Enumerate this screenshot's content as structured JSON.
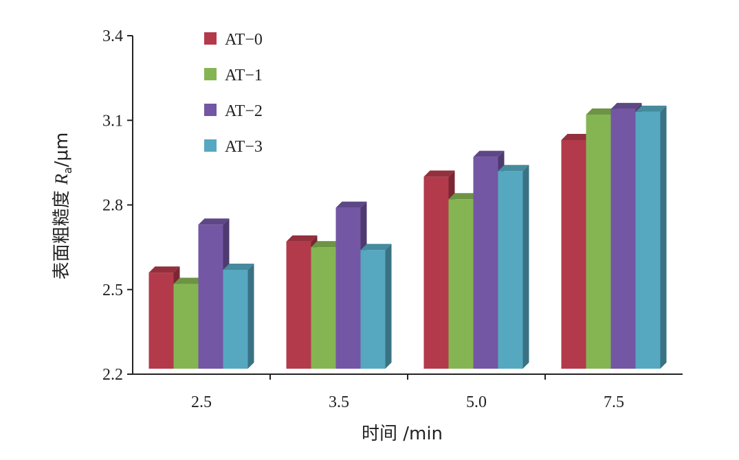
{
  "chart_data": {
    "type": "bar",
    "categories": [
      "2.5",
      "3.5",
      "5.0",
      "7.5"
    ],
    "series": [
      {
        "name": "AT−0",
        "values": [
          2.56,
          2.67,
          2.9,
          3.03
        ],
        "color": "#b33a4b"
      },
      {
        "name": "AT−1",
        "values": [
          2.52,
          2.65,
          2.82,
          3.12
        ],
        "color": "#85b553"
      },
      {
        "name": "AT−2",
        "values": [
          2.73,
          2.79,
          2.97,
          3.14
        ],
        "color": "#7356a4"
      },
      {
        "name": "AT−3",
        "values": [
          2.57,
          2.64,
          2.92,
          3.13
        ],
        "color": "#55a8c0"
      }
    ],
    "ylim": [
      2.2,
      3.4
    ],
    "yticks": [
      "2.2",
      "2.5",
      "2.8",
      "3.1",
      "3.4"
    ],
    "xlabel": "时间 /min",
    "ylabel_prefix": "表面粗糙度 ",
    "ylabel_var": "R",
    "ylabel_sub": "a",
    "ylabel_unit": "/μm",
    "legend_position": "top-left",
    "grid": false
  }
}
